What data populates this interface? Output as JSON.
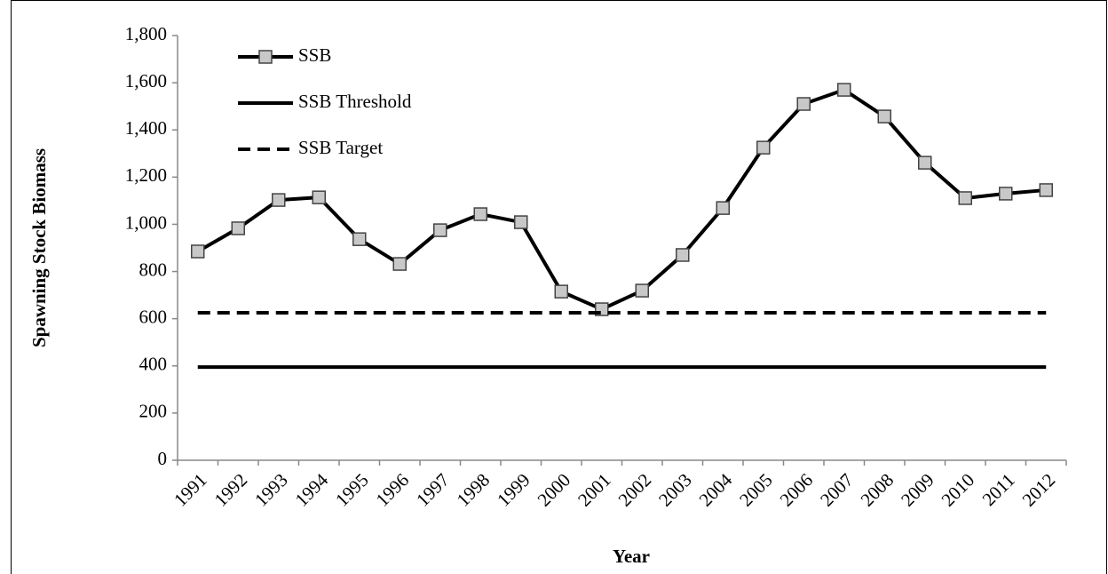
{
  "chart_data": {
    "type": "line",
    "x_label": "Year",
    "y_label": "Spawning Stock Biomass",
    "categories": [
      "1991",
      "1992",
      "1993",
      "1994",
      "1995",
      "1996",
      "1997",
      "1998",
      "1999",
      "2000",
      "2001",
      "2002",
      "2003",
      "2004",
      "2005",
      "2006",
      "2007",
      "2008",
      "2009",
      "2010",
      "2011",
      "2012"
    ],
    "series": [
      {
        "name": "SSB",
        "color": "#000000",
        "marker": "square",
        "marker_color": "#c8c8c8",
        "style": "solid",
        "values": [
          885,
          983,
          1103,
          1114,
          937,
          832,
          975,
          1043,
          1009,
          715,
          640,
          719,
          870,
          1069,
          1325,
          1510,
          1570,
          1457,
          1261,
          1111,
          1130,
          1145
        ]
      },
      {
        "name": "SSB Threshold",
        "color": "#000000",
        "style": "solid",
        "values": [
          395,
          395,
          395,
          395,
          395,
          395,
          395,
          395,
          395,
          395,
          395,
          395,
          395,
          395,
          395,
          395,
          395,
          395,
          395,
          395,
          395,
          395
        ]
      },
      {
        "name": "SSB Target",
        "color": "#000000",
        "style": "dashed",
        "values": [
          625,
          625,
          625,
          625,
          625,
          625,
          625,
          625,
          625,
          625,
          625,
          625,
          625,
          625,
          625,
          625,
          625,
          625,
          625,
          625,
          625,
          625
        ]
      }
    ],
    "ylim": [
      0,
      1800
    ],
    "yticks": [
      0,
      200,
      400,
      600,
      800,
      {
        "value": 1000,
        "label": "1,000"
      },
      {
        "value": 1200,
        "label": "1,200"
      },
      {
        "value": 1400,
        "label": "1,400"
      },
      {
        "value": 1600,
        "label": "1,600"
      },
      {
        "value": 1800,
        "label": "1,800"
      }
    ],
    "legend": "upper left",
    "grid": false
  }
}
